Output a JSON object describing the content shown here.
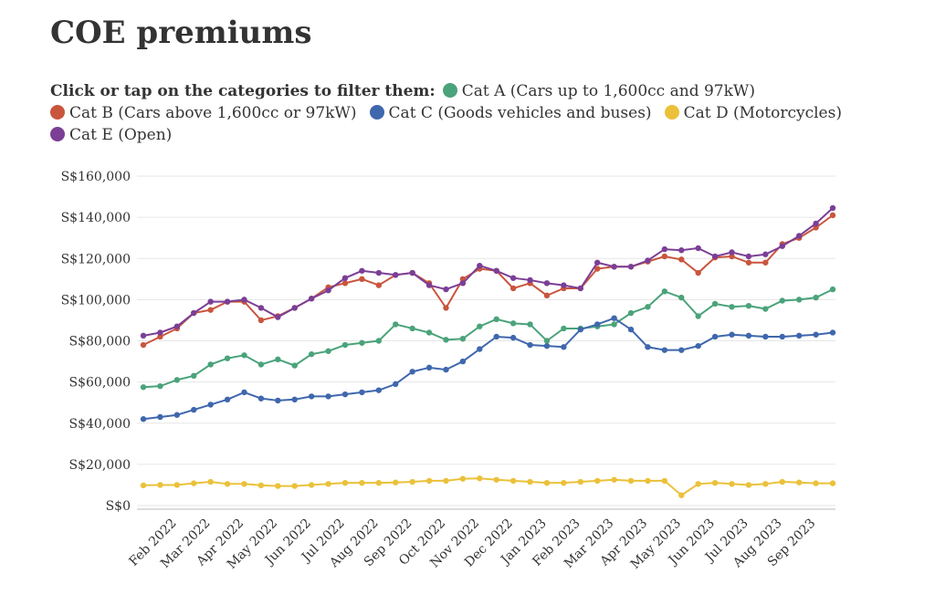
{
  "chart_data": {
    "type": "line",
    "title": "COE premiums",
    "legend_prompt": "Click or tap on the categories to filter them:",
    "categories": [
      null,
      null,
      "Feb 2022",
      null,
      "Mar 2022",
      null,
      "Apr 2022",
      null,
      "May 2022",
      null,
      "Jun 2022",
      null,
      "Jul 2022",
      null,
      "Aug 2022",
      null,
      "Sep 2022",
      null,
      "Oct 2022",
      null,
      "Nov 2022",
      null,
      "Dec 2022",
      null,
      "Jan 2023",
      null,
      "Feb 2023",
      null,
      "Mar 2023",
      null,
      "Apr 2023",
      null,
      "May 2023",
      null,
      "Jun 2023",
      null,
      "Jul 2023",
      null,
      "Aug 2023",
      null,
      "Sep 2023",
      null
    ],
    "series": [
      {
        "name": "Cat A (Cars up to 1,600cc and 97kW)",
        "color": "#4aa37a",
        "values": [
          57500,
          58000,
          61000,
          63000,
          68500,
          71500,
          73000,
          68500,
          71000,
          68000,
          73500,
          75000,
          78000,
          79000,
          80000,
          88000,
          86000,
          84000,
          80500,
          81000,
          87000,
          90500,
          88500,
          88000,
          80000,
          86000,
          86000,
          87000,
          88000,
          93500,
          96500,
          104000,
          101000,
          92000,
          98000,
          96500,
          97000,
          95500,
          99500,
          100000,
          101000,
          105000
        ]
      },
      {
        "name": "Cat B (Cars above 1,600cc or 97kW)",
        "color": "#c9553d",
        "values": [
          78000,
          82000,
          86000,
          93500,
          95000,
          99000,
          99000,
          90000,
          92000,
          96000,
          100500,
          106000,
          108000,
          110000,
          107000,
          112000,
          113000,
          108000,
          96000,
          110000,
          115000,
          114000,
          105500,
          108000,
          102000,
          105500,
          105500,
          115000,
          116000,
          116000,
          118500,
          121000,
          119500,
          113000,
          120500,
          121000,
          118000,
          118000,
          127000,
          130000,
          135000,
          141000
        ]
      },
      {
        "name": "Cat C (Goods vehicles and buses)",
        "color": "#3f67ad",
        "values": [
          42000,
          43000,
          44000,
          46500,
          49000,
          51500,
          55000,
          52000,
          51000,
          51500,
          53000,
          53000,
          54000,
          55000,
          56000,
          59000,
          65000,
          67000,
          66000,
          70000,
          76000,
          82000,
          81500,
          78000,
          77500,
          77000,
          85500,
          88000,
          91000,
          85500,
          77000,
          75500,
          75500,
          77500,
          82000,
          83000,
          82500,
          82000,
          82000,
          82500,
          83000,
          84000
        ]
      },
      {
        "name": "Cat D (Motorcycles)",
        "color": "#ebc13a",
        "values": [
          9800,
          10000,
          10000,
          10800,
          11500,
          10500,
          10500,
          9800,
          9500,
          9500,
          10000,
          10500,
          11000,
          11000,
          11000,
          11200,
          11500,
          12000,
          12000,
          13000,
          13200,
          12500,
          12000,
          11500,
          11000,
          11000,
          11500,
          12000,
          12500,
          12000,
          12000,
          12000,
          5000,
          10500,
          11000,
          10500,
          10000,
          10500,
          11500,
          11200,
          10800,
          10800
        ]
      },
      {
        "name": "Cat E (Open)",
        "color": "#7b3f96",
        "values": [
          82500,
          84000,
          87000,
          93500,
          99000,
          99000,
          100000,
          96000,
          91500,
          96000,
          100500,
          104500,
          110500,
          114000,
          113000,
          112000,
          113000,
          107000,
          105000,
          108000,
          116500,
          114000,
          110500,
          109500,
          108000,
          107000,
          105500,
          118000,
          116000,
          116000,
          119000,
          124500,
          124000,
          125000,
          121000,
          123000,
          121000,
          122000,
          126000,
          131000,
          137000,
          144500
        ]
      }
    ],
    "ylim": [
      0,
      160000
    ],
    "yticks": [
      {
        "value": 0,
        "label": "S$0"
      },
      {
        "value": 20000,
        "label": "S$20,000"
      },
      {
        "value": 40000,
        "label": "S$40,000"
      },
      {
        "value": 60000,
        "label": "S$60,000"
      },
      {
        "value": 80000,
        "label": "S$80,000"
      },
      {
        "value": 100000,
        "label": "S$100,000"
      },
      {
        "value": 120000,
        "label": "S$120,000"
      },
      {
        "value": 140000,
        "label": "S$140,000"
      },
      {
        "value": 160000,
        "label": "S$160,000"
      }
    ],
    "grid": true
  }
}
